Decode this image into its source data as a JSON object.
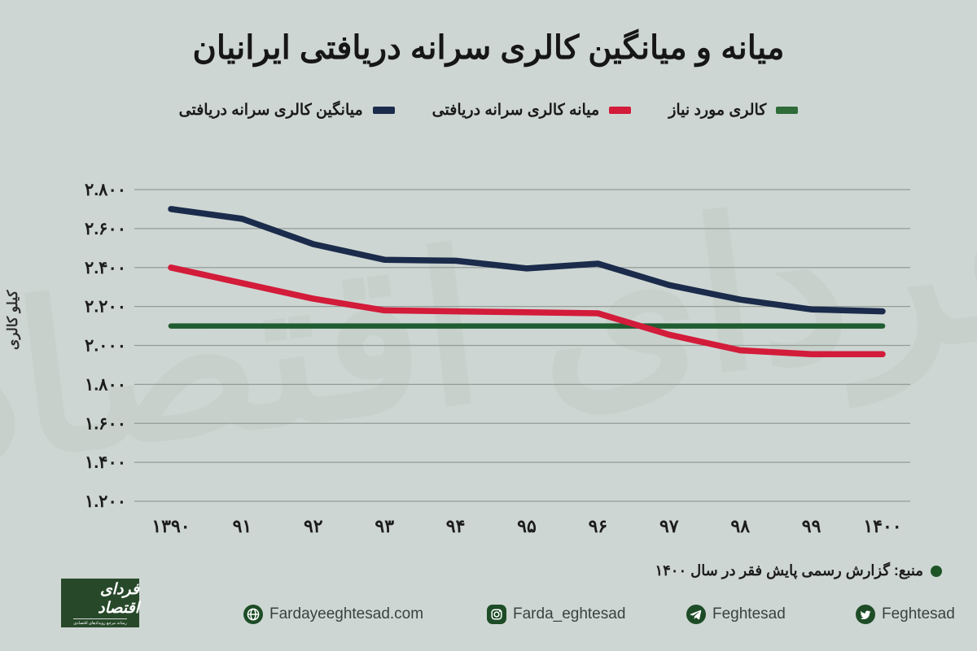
{
  "title": "میانه و میانگین کالری سرانه دریافتی ایرانیان",
  "legend": [
    {
      "label": "میانگین کالری سرانه دریافتی",
      "color": "#1b2b4b"
    },
    {
      "label": "میانه کالری سرانه دریافتی",
      "color": "#d31b3a"
    },
    {
      "label": "کالری مورد نیاز",
      "color": "#2e6b38"
    }
  ],
  "chart_data": {
    "type": "line",
    "categories": [
      "۱۳۹۰",
      "۹۱",
      "۹۲",
      "۹۳",
      "۹۴",
      "۹۵",
      "۹۶",
      "۹۷",
      "۹۸",
      "۹۹",
      "۱۴۰۰"
    ],
    "series": [
      {
        "name": "میانگین کالری سرانه دریافتی",
        "color": "#1b2b4b",
        "values": [
          2700,
          2650,
          2520,
          2440,
          2435,
          2395,
          2420,
          2310,
          2235,
          2185,
          2175
        ]
      },
      {
        "name": "میانه کالری سرانه دریافتی",
        "color": "#d31b3a",
        "values": [
          2400,
          2320,
          2240,
          2180,
          2175,
          2170,
          2165,
          2055,
          1975,
          1955,
          1955
        ]
      },
      {
        "name": "کالری مورد نیاز",
        "color": "#1f5c31",
        "values": [
          2100,
          2100,
          2100,
          2100,
          2100,
          2100,
          2100,
          2100,
          2100,
          2100,
          2100
        ]
      }
    ],
    "ylabel": "کیلو کالری",
    "ylim": [
      1200,
      2800
    ],
    "ytick_step": 200,
    "ytick_labels": [
      "۲.۸۰۰",
      "۲.۶۰۰",
      "۲.۴۰۰",
      "۲.۲۰۰",
      "۲.۰۰۰",
      "۱.۸۰۰",
      "۱.۶۰۰",
      "۱.۴۰۰",
      "۱.۲۰۰"
    ],
    "grid": "horizontal",
    "legend_position": "top"
  },
  "watermark": "فردای اقتصاد",
  "source_note": "منبع: گزارش رسمی پایش فقر در سال ۱۴۰۰",
  "footer": {
    "logo_title": "فردای اقتصاد",
    "logo_tagline": "رسانه مرجع رویدادهای اقتصادی",
    "items": [
      {
        "icon": "globe-icon",
        "label": "Fardayeeghtesad.com"
      },
      {
        "icon": "instagram-icon",
        "label": "Farda_eghtesad"
      },
      {
        "icon": "telegram-icon",
        "label": "Feghtesad"
      },
      {
        "icon": "twitter-icon",
        "label": "Feghtesad"
      }
    ]
  },
  "colors": {
    "background": "#ced6d3",
    "grid": "#949c99",
    "dark_green": "#1d4c26",
    "watermark": "#c3cdc7",
    "text": "#1a1a1a"
  }
}
